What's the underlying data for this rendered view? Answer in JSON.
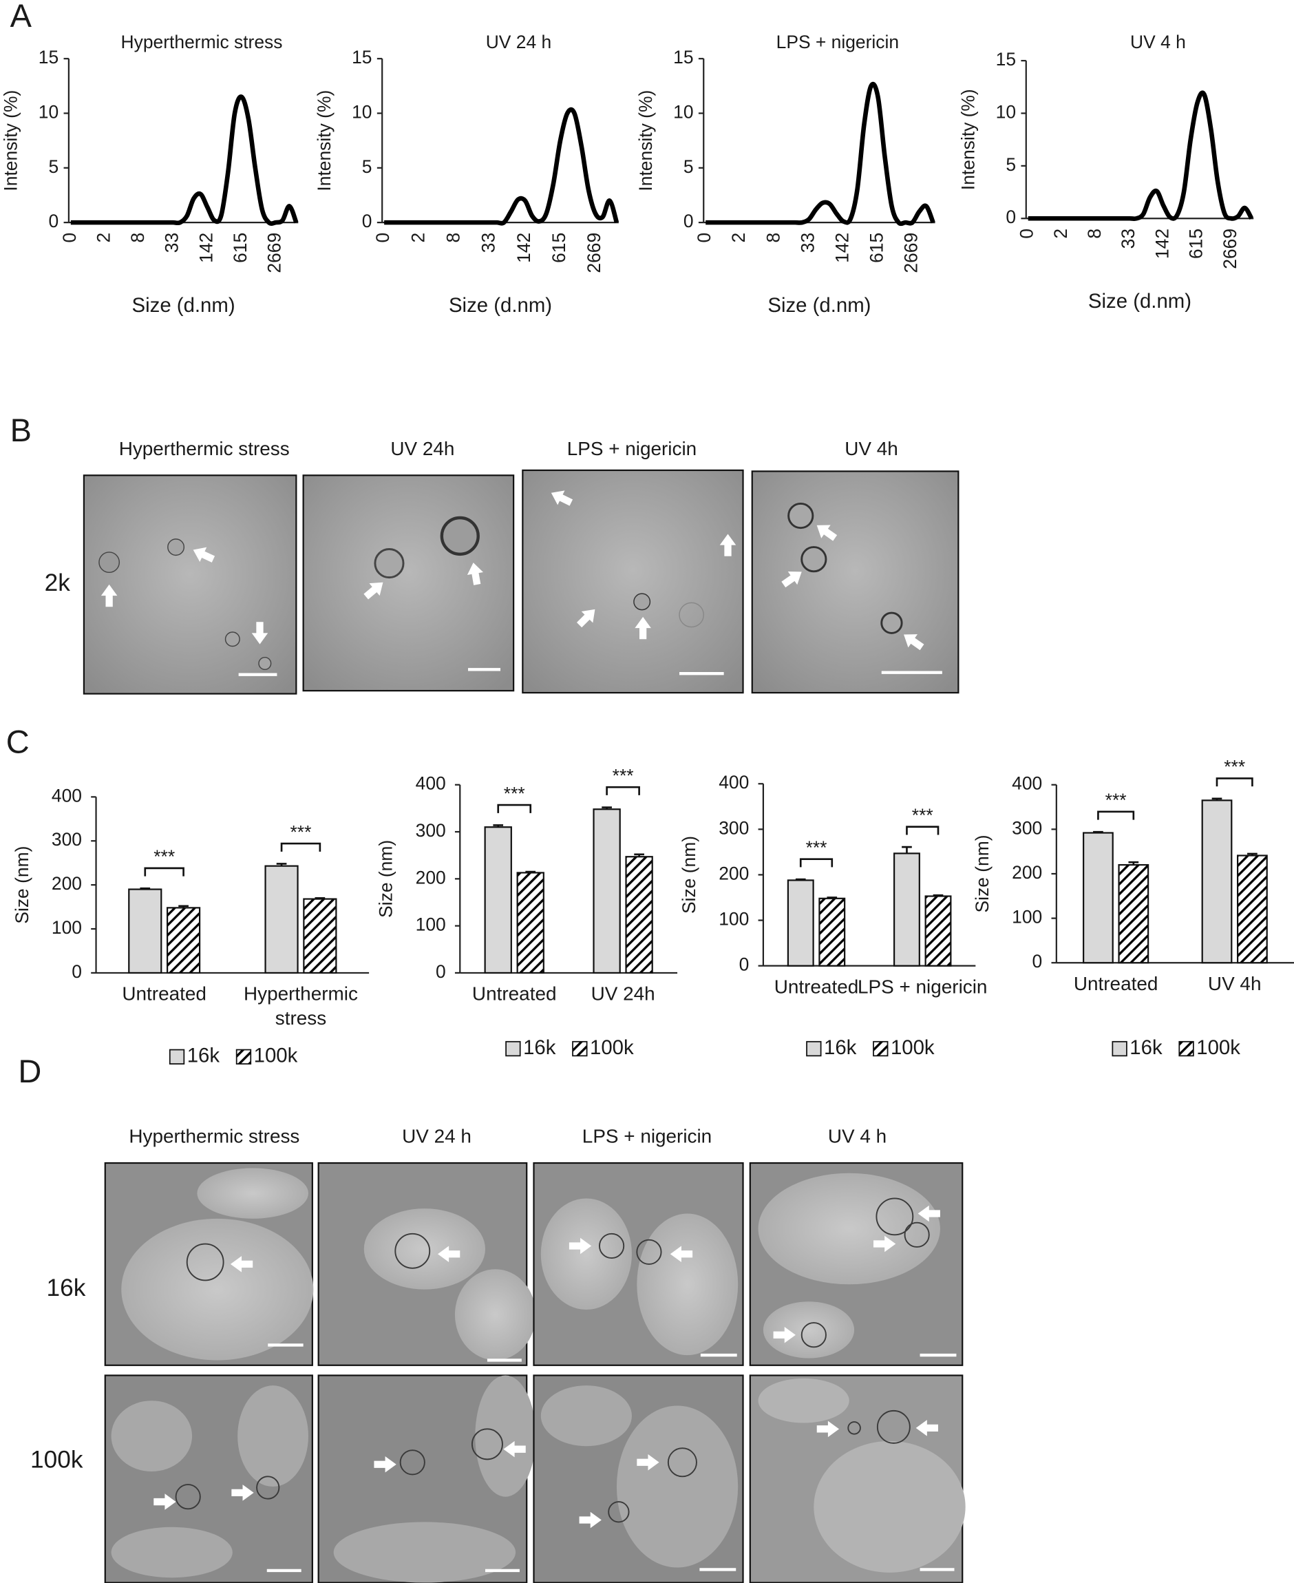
{
  "panel_labels": [
    "A",
    "B",
    "C",
    "D"
  ],
  "chart_data": [
    {
      "type": "line",
      "title": "Hyperthermic stress",
      "xlabel": "Size (d.nm)",
      "ylabel": "Intensity (%)",
      "color": "#000000",
      "categories": [
        "0",
        null,
        null,
        null,
        null,
        "2",
        null,
        null,
        null,
        null,
        "8",
        null,
        null,
        null,
        null,
        "33",
        null,
        null,
        null,
        null,
        "142",
        null,
        null,
        null,
        null,
        "615",
        null,
        null,
        null,
        null,
        "2669",
        null,
        null,
        null
      ],
      "values": [
        0,
        0,
        0,
        0,
        0,
        0,
        0,
        0,
        0,
        0,
        0,
        0,
        0,
        0,
        0,
        0,
        0,
        0.6,
        2.2,
        2.6,
        1.4,
        0.2,
        0.6,
        4.5,
        10,
        11.5,
        9.5,
        5,
        1.2,
        0,
        0,
        0.2,
        1.5,
        0
      ],
      "ylim": [
        0,
        15
      ],
      "yticks": [
        0,
        5,
        10,
        15
      ]
    },
    {
      "type": "line",
      "title": "UV 24 h",
      "xlabel": "Size (d.nm)",
      "ylabel": "Intensity (%)",
      "color": "#000000",
      "categories": [
        "0",
        null,
        null,
        null,
        null,
        "2",
        null,
        null,
        null,
        null,
        "8",
        null,
        null,
        null,
        null,
        "33",
        null,
        null,
        null,
        null,
        "142",
        null,
        null,
        null,
        null,
        "615",
        null,
        null,
        null,
        null,
        "2669",
        null,
        null,
        null
      ],
      "values": [
        0,
        0,
        0,
        0,
        0,
        0,
        0,
        0,
        0,
        0,
        0,
        0,
        0,
        0,
        0,
        0,
        0,
        0,
        1.0,
        2.1,
        2.0,
        0.6,
        0.1,
        0.8,
        3.5,
        7.5,
        10,
        10,
        7,
        3,
        0.8,
        0.5,
        2.0,
        0
      ],
      "ylim": [
        0,
        15
      ],
      "yticks": [
        0,
        5,
        10,
        15
      ]
    },
    {
      "type": "line",
      "title": "LPS + nigericin",
      "xlabel": "Size (d.nm)",
      "ylabel": "Intensity (%)",
      "color": "#000000",
      "categories": [
        "0",
        null,
        null,
        null,
        null,
        "2",
        null,
        null,
        null,
        null,
        "8",
        null,
        null,
        null,
        null,
        "33",
        null,
        null,
        null,
        null,
        "142",
        null,
        null,
        null,
        null,
        "615",
        null,
        null,
        null,
        null,
        "2669",
        null,
        null,
        null
      ],
      "values": [
        0,
        0,
        0,
        0,
        0,
        0,
        0,
        0,
        0,
        0,
        0,
        0,
        0,
        0,
        0,
        0.3,
        1.2,
        1.8,
        1.7,
        0.8,
        0.1,
        0.3,
        3,
        9,
        12.5,
        11.5,
        6,
        1.5,
        0,
        0,
        0,
        1.0,
        1.5,
        0
      ],
      "ylim": [
        0,
        15
      ],
      "yticks": [
        0,
        5,
        10,
        15
      ]
    },
    {
      "type": "line",
      "title": "UV 4 h",
      "xlabel": "Size (d.nm)",
      "ylabel": "Intensity (%)",
      "color": "#000000",
      "categories": [
        "0",
        null,
        null,
        null,
        null,
        "2",
        null,
        null,
        null,
        null,
        "8",
        null,
        null,
        null,
        null,
        "33",
        null,
        null,
        null,
        null,
        "142",
        null,
        null,
        null,
        null,
        "615",
        null,
        null,
        null,
        null,
        "2669",
        null,
        null,
        null
      ],
      "values": [
        0,
        0,
        0,
        0,
        0,
        0,
        0,
        0,
        0,
        0,
        0,
        0,
        0,
        0,
        0,
        0,
        0,
        0.4,
        2.0,
        2.6,
        1.2,
        0.1,
        0.3,
        2.5,
        7.5,
        11,
        11.8,
        8.5,
        3.5,
        0.5,
        0,
        0.2,
        1.0,
        0
      ],
      "ylim": [
        0,
        15
      ],
      "yticks": [
        0,
        5,
        10,
        15
      ]
    },
    {
      "type": "bar",
      "ylabel": "Size (nm)",
      "categories": [
        "Untreated",
        "Hyperthermic stress"
      ],
      "legend": "bottom",
      "series": [
        {
          "name": "16k",
          "color": "#d9d9d9",
          "values": [
            190,
            243
          ],
          "errors": [
            2,
            5
          ]
        },
        {
          "name": "100k",
          "color": "#000000",
          "pattern": "hatch",
          "values": [
            148,
            168
          ],
          "errors": [
            4,
            2
          ]
        }
      ],
      "annotations": [
        "***",
        "***"
      ],
      "ylim": [
        0,
        400
      ],
      "yticks": [
        0,
        100,
        200,
        300,
        400
      ]
    },
    {
      "type": "bar",
      "ylabel": "Size (nm)",
      "categories": [
        "Untreated",
        "UV 24h"
      ],
      "legend": "bottom",
      "series": [
        {
          "name": "16k",
          "color": "#d9d9d9",
          "values": [
            310,
            348
          ],
          "errors": [
            4,
            4
          ]
        },
        {
          "name": "100k",
          "color": "#000000",
          "pattern": "hatch",
          "values": [
            213,
            247
          ],
          "errors": [
            2,
            5
          ]
        }
      ],
      "annotations": [
        "***",
        "***"
      ],
      "ylim": [
        0,
        400
      ],
      "yticks": [
        0,
        100,
        200,
        300,
        400
      ]
    },
    {
      "type": "bar",
      "ylabel": "Size (nm)",
      "categories": [
        "Untreated",
        "LPS + nigericin"
      ],
      "legend": "bottom",
      "series": [
        {
          "name": "16k",
          "color": "#d9d9d9",
          "values": [
            188,
            247
          ],
          "errors": [
            2,
            14
          ]
        },
        {
          "name": "100k",
          "color": "#000000",
          "pattern": "hatch",
          "values": [
            148,
            153
          ],
          "errors": [
            2,
            2
          ]
        }
      ],
      "annotations": [
        "***",
        "***"
      ],
      "ylim": [
        0,
        400
      ],
      "yticks": [
        0,
        100,
        200,
        300,
        400
      ]
    },
    {
      "type": "bar",
      "ylabel": "Size (nm)",
      "categories": [
        "Untreated",
        "UV 4h"
      ],
      "legend": "bottom",
      "series": [
        {
          "name": "16k",
          "color": "#d9d9d9",
          "values": [
            292,
            365
          ],
          "errors": [
            2,
            4
          ]
        },
        {
          "name": "100k",
          "color": "#000000",
          "pattern": "hatch",
          "values": [
            220,
            241
          ],
          "errors": [
            6,
            4
          ]
        }
      ],
      "annotations": [
        "***",
        "***"
      ],
      "ylim": [
        0,
        400
      ],
      "yticks": [
        0,
        100,
        200,
        300,
        400
      ]
    }
  ],
  "light_microscopy": {
    "titles": [
      "Hyperthermic stress",
      "UV 24h",
      "LPS + nigericin",
      "UV 4h"
    ],
    "row_labels": [
      "2k"
    ]
  },
  "cryo_em": {
    "titles": [
      "Hyperthermic stress",
      "UV 24 h",
      "LPS + nigericin",
      "UV 4 h"
    ],
    "row_labels": [
      "16k",
      "100k"
    ]
  }
}
